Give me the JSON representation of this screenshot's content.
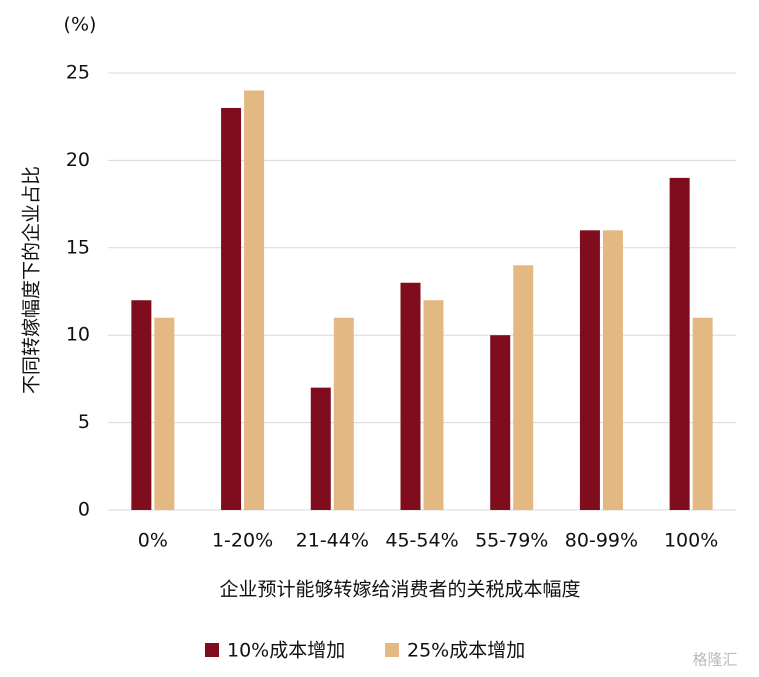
{
  "chart_data": {
    "type": "bar",
    "unit_label": "(%)",
    "y_axis_label": "不同转嫁幅度下的企业占比",
    "x_axis_label": "企业预计能够转嫁给消费者的关税成本幅度",
    "categories": [
      "0%",
      "1-20%",
      "21-44%",
      "45-54%",
      "55-79%",
      "80-99%",
      "100%"
    ],
    "series": [
      {
        "name": "10%成本增加",
        "color": "#7f0d1e",
        "values": [
          12,
          23,
          7,
          13,
          10,
          16,
          19
        ]
      },
      {
        "name": "25%成本增加",
        "color": "#e3b882",
        "values": [
          11,
          24,
          11,
          12,
          14,
          16,
          11
        ]
      }
    ],
    "ylim": [
      0,
      25
    ],
    "yticks": [
      0,
      5,
      10,
      15,
      20,
      25
    ],
    "grid": true,
    "legend": "bottom",
    "watermark": "格隆汇"
  }
}
